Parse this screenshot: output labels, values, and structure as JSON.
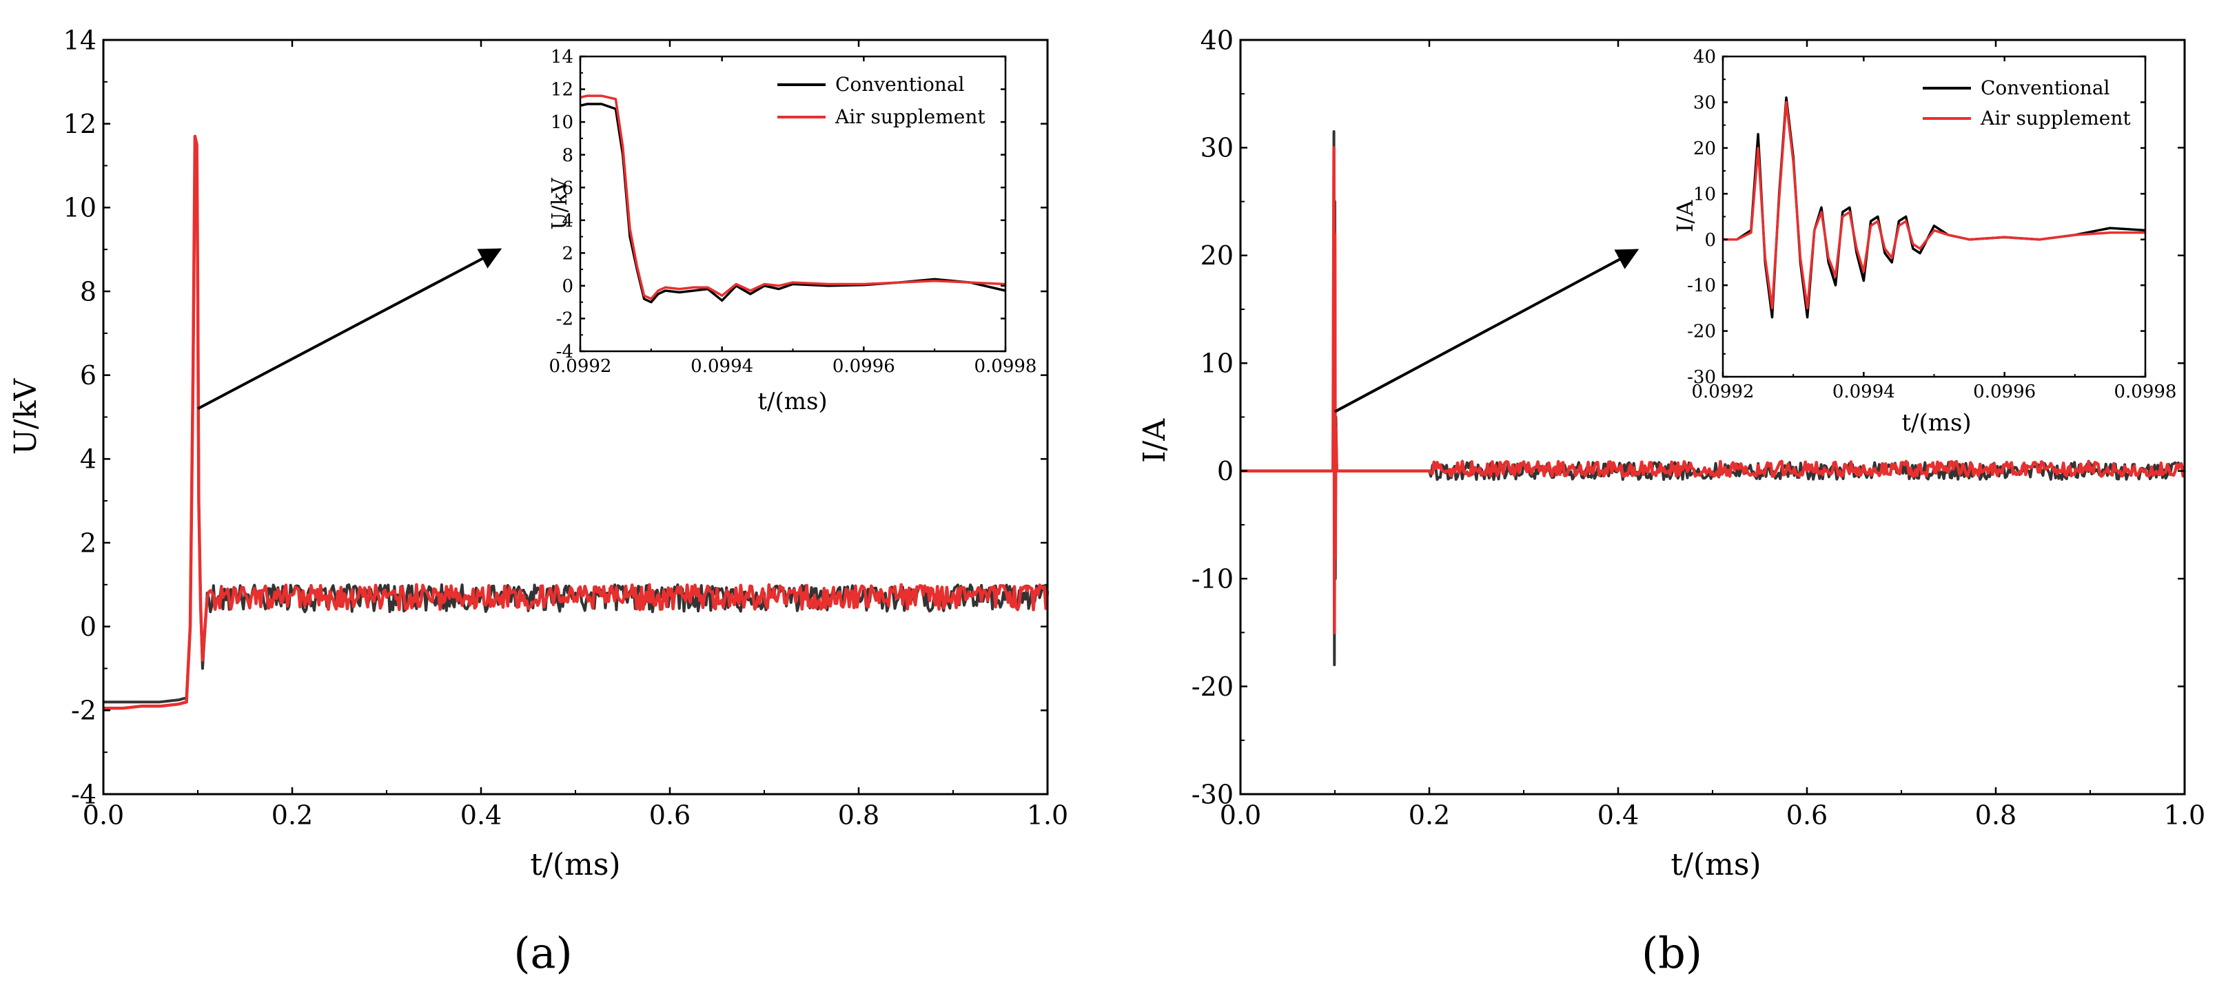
{
  "chart_data": [
    {
      "panel_label": "(a)",
      "type": "line",
      "xlabel": "t/(ms)",
      "ylabel": "U/kV",
      "xlim": [
        0.0,
        1.0
      ],
      "ylim": [
        -4,
        14
      ],
      "xticks": [
        0.0,
        0.2,
        0.4,
        0.6,
        0.8,
        1.0
      ],
      "xtick_labels": [
        "0.0",
        "0.2",
        "0.4",
        "0.6",
        "0.8",
        "1.0"
      ],
      "yticks": [
        -4,
        -2,
        0,
        2,
        4,
        6,
        8,
        10,
        12,
        14
      ],
      "ytick_labels": [
        "-4",
        "-2",
        "0",
        "2",
        "4",
        "6",
        "8",
        "10",
        "12",
        "14"
      ],
      "series": [
        {
          "name": "Conventional",
          "color": "#333333",
          "x": [
            0.0,
            0.02,
            0.04,
            0.06,
            0.08,
            0.088,
            0.092,
            0.095,
            0.097,
            0.099,
            0.1,
            0.101,
            0.103,
            0.105,
            0.11,
            0.15,
            0.2,
            0.3,
            0.4,
            0.5,
            0.6,
            0.7,
            0.8,
            0.9,
            1.0
          ],
          "y": [
            -1.8,
            -1.8,
            -1.8,
            -1.8,
            -1.75,
            -1.7,
            0.0,
            6.0,
            11.2,
            11.0,
            8.0,
            3.0,
            0.5,
            -1.0,
            0.8,
            0.8,
            0.8,
            0.8,
            0.75,
            0.8,
            0.8,
            0.8,
            0.75,
            0.8,
            0.8
          ],
          "noise_band": [
            0.35,
            1.0
          ]
        },
        {
          "name": "Air supplement",
          "color": "#e8302f",
          "x": [
            0.0,
            0.02,
            0.04,
            0.06,
            0.08,
            0.088,
            0.092,
            0.095,
            0.097,
            0.099,
            0.1,
            0.101,
            0.103,
            0.105,
            0.11,
            0.15,
            0.2,
            0.3,
            0.4,
            0.5,
            0.6,
            0.7,
            0.8,
            0.9,
            1.0
          ],
          "y": [
            -1.95,
            -1.95,
            -1.9,
            -1.9,
            -1.85,
            -1.8,
            0.0,
            6.0,
            11.7,
            11.5,
            8.0,
            3.0,
            0.5,
            -0.8,
            0.7,
            0.75,
            0.75,
            0.7,
            0.75,
            0.7,
            0.75,
            0.7,
            0.75,
            0.8,
            0.85
          ],
          "noise_band": [
            0.4,
            1.0
          ]
        }
      ],
      "annotation": {
        "type": "arrow",
        "from": [
          0.1,
          5.2
        ],
        "to": [
          0.42,
          9.0
        ]
      },
      "inset": {
        "xlabel": "t/(ms)",
        "ylabel": "U/kV",
        "xlim": [
          0.0992,
          0.0998
        ],
        "ylim": [
          -4,
          14
        ],
        "xticks": [
          0.0992,
          0.0994,
          0.0996,
          0.0998
        ],
        "xtick_labels": [
          "0.0992",
          "0.0994",
          "0.0996",
          "0.0998"
        ],
        "yticks": [
          -4,
          -2,
          0,
          2,
          4,
          6,
          8,
          10,
          12,
          14
        ],
        "ytick_labels": [
          "-4",
          "-2",
          "0",
          "2",
          "4",
          "6",
          "8",
          "10",
          "12",
          "14"
        ],
        "legend": [
          "Conventional",
          "Air supplement"
        ],
        "series": [
          {
            "name": "Conventional",
            "color": "#000000",
            "x": [
              0.0992,
              0.09921,
              0.09923,
              0.09925,
              0.09926,
              0.09927,
              0.09928,
              0.09929,
              0.0993,
              0.09931,
              0.09932,
              0.09934,
              0.09936,
              0.09938,
              0.0994,
              0.09942,
              0.09944,
              0.09946,
              0.09948,
              0.0995,
              0.09955,
              0.0996,
              0.09965,
              0.0997,
              0.09975,
              0.0998
            ],
            "y": [
              11.0,
              11.1,
              11.1,
              10.8,
              8.0,
              3.0,
              1.0,
              -0.8,
              -1.0,
              -0.5,
              -0.3,
              -0.4,
              -0.3,
              -0.2,
              -0.9,
              0.0,
              -0.5,
              0.0,
              -0.2,
              0.1,
              0.0,
              0.05,
              0.2,
              0.4,
              0.2,
              -0.3
            ]
          },
          {
            "name": "Air supplement",
            "color": "#e8302f",
            "x": [
              0.0992,
              0.09921,
              0.09923,
              0.09925,
              0.09926,
              0.09927,
              0.09928,
              0.09929,
              0.0993,
              0.09931,
              0.09932,
              0.09934,
              0.09936,
              0.09938,
              0.0994,
              0.09942,
              0.09944,
              0.09946,
              0.09948,
              0.0995,
              0.09955,
              0.0996,
              0.09965,
              0.0997,
              0.09975,
              0.0998
            ],
            "y": [
              11.5,
              11.6,
              11.6,
              11.4,
              8.5,
              3.5,
              1.2,
              -0.6,
              -0.8,
              -0.3,
              -0.1,
              -0.2,
              -0.1,
              -0.1,
              -0.6,
              0.1,
              -0.3,
              0.1,
              0.0,
              0.2,
              0.1,
              0.1,
              0.2,
              0.3,
              0.2,
              0.1
            ]
          }
        ]
      }
    },
    {
      "panel_label": "(b)",
      "type": "line",
      "xlabel": "t/(ms)",
      "ylabel": "I/A",
      "xlim": [
        0.0,
        1.0
      ],
      "ylim": [
        -30,
        40
      ],
      "xticks": [
        0.0,
        0.2,
        0.4,
        0.6,
        0.8,
        1.0
      ],
      "xtick_labels": [
        "0.0",
        "0.2",
        "0.4",
        "0.6",
        "0.8",
        "1.0"
      ],
      "yticks": [
        -30,
        -20,
        -10,
        0,
        10,
        20,
        30,
        40
      ],
      "ytick_labels": [
        "-30",
        "-20",
        "-10",
        "0",
        "10",
        "20",
        "30",
        "40"
      ],
      "series": [
        {
          "name": "Conventional",
          "color": "#333333",
          "x": [
            0.0,
            0.05,
            0.098,
            0.099,
            0.0995,
            0.1,
            0.1005,
            0.101,
            0.102,
            0.2,
            0.4,
            0.6,
            0.8,
            1.0
          ],
          "y": [
            0.0,
            0.0,
            0.0,
            31.5,
            -18.0,
            25.0,
            -10.0,
            5.0,
            0.0,
            0.0,
            0.0,
            0.0,
            0.0,
            0.0
          ],
          "noise_band": [
            -0.8,
            0.8
          ]
        },
        {
          "name": "Air supplement",
          "color": "#e8302f",
          "x": [
            0.0,
            0.05,
            0.098,
            0.099,
            0.0995,
            0.1,
            0.1005,
            0.101,
            0.102,
            0.2,
            0.4,
            0.6,
            0.8,
            1.0
          ],
          "y": [
            0.0,
            0.0,
            0.0,
            30.0,
            -15.0,
            22.0,
            -8.0,
            4.0,
            0.0,
            0.0,
            0.0,
            0.0,
            0.0,
            0.0
          ],
          "noise_band": [
            -0.5,
            0.9
          ]
        }
      ],
      "annotation": {
        "type": "arrow",
        "from": [
          0.1,
          5.5
        ],
        "to": [
          0.42,
          20.5
        ]
      },
      "inset": {
        "xlabel": "t/(ms)",
        "ylabel": "I/A",
        "xlim": [
          0.0992,
          0.0998
        ],
        "ylim": [
          -30,
          40
        ],
        "xticks": [
          0.0992,
          0.0994,
          0.0996,
          0.0998
        ],
        "xtick_labels": [
          "0.0992",
          "0.0994",
          "0.0996",
          "0.0998"
        ],
        "yticks": [
          -30,
          -20,
          -10,
          0,
          10,
          20,
          30,
          40
        ],
        "ytick_labels": [
          "-30",
          "-20",
          "-10",
          "0",
          "10",
          "20",
          "30",
          "40"
        ],
        "legend": [
          "Conventional",
          "Air supplement"
        ],
        "series": [
          {
            "name": "Conventional",
            "color": "#000000",
            "x": [
              0.0992,
              0.09922,
              0.09924,
              0.09925,
              0.09926,
              0.09927,
              0.09928,
              0.09929,
              0.0993,
              0.09931,
              0.09932,
              0.09933,
              0.09934,
              0.09935,
              0.09936,
              0.09937,
              0.09938,
              0.09939,
              0.0994,
              0.09941,
              0.09942,
              0.09943,
              0.09944,
              0.09945,
              0.09946,
              0.09947,
              0.09948,
              0.0995,
              0.09952,
              0.09955,
              0.0996,
              0.09965,
              0.0997,
              0.09975,
              0.0998
            ],
            "y": [
              0.0,
              0.0,
              2.0,
              23.0,
              -5.0,
              -17.0,
              10.0,
              31.0,
              18.0,
              -5.0,
              -17.0,
              2.0,
              7.0,
              -5.0,
              -10.0,
              6.0,
              7.0,
              -3.0,
              -9.0,
              4.0,
              5.0,
              -3.0,
              -5.0,
              4.0,
              5.0,
              -2.0,
              -3.0,
              3.0,
              1.0,
              0.0,
              0.5,
              0.0,
              1.0,
              2.5,
              2.0
            ]
          },
          {
            "name": "Air supplement",
            "color": "#e8302f",
            "x": [
              0.0992,
              0.09922,
              0.09924,
              0.09925,
              0.09926,
              0.09927,
              0.09928,
              0.09929,
              0.0993,
              0.09931,
              0.09932,
              0.09933,
              0.09934,
              0.09935,
              0.09936,
              0.09937,
              0.09938,
              0.09939,
              0.0994,
              0.09941,
              0.09942,
              0.09943,
              0.09944,
              0.09945,
              0.09946,
              0.09947,
              0.09948,
              0.0995,
              0.09952,
              0.09955,
              0.0996,
              0.09965,
              0.0997,
              0.09975,
              0.0998
            ],
            "y": [
              0.0,
              0.0,
              1.5,
              20.0,
              -4.0,
              -15.0,
              9.0,
              30.0,
              17.0,
              -4.0,
              -15.0,
              2.0,
              6.0,
              -4.0,
              -8.0,
              5.0,
              6.0,
              -2.0,
              -7.0,
              3.0,
              4.0,
              -2.0,
              -4.0,
              3.0,
              4.0,
              -1.0,
              -2.0,
              2.0,
              1.0,
              0.0,
              0.5,
              0.0,
              1.0,
              1.5,
              1.5
            ]
          }
        ]
      }
    }
  ]
}
